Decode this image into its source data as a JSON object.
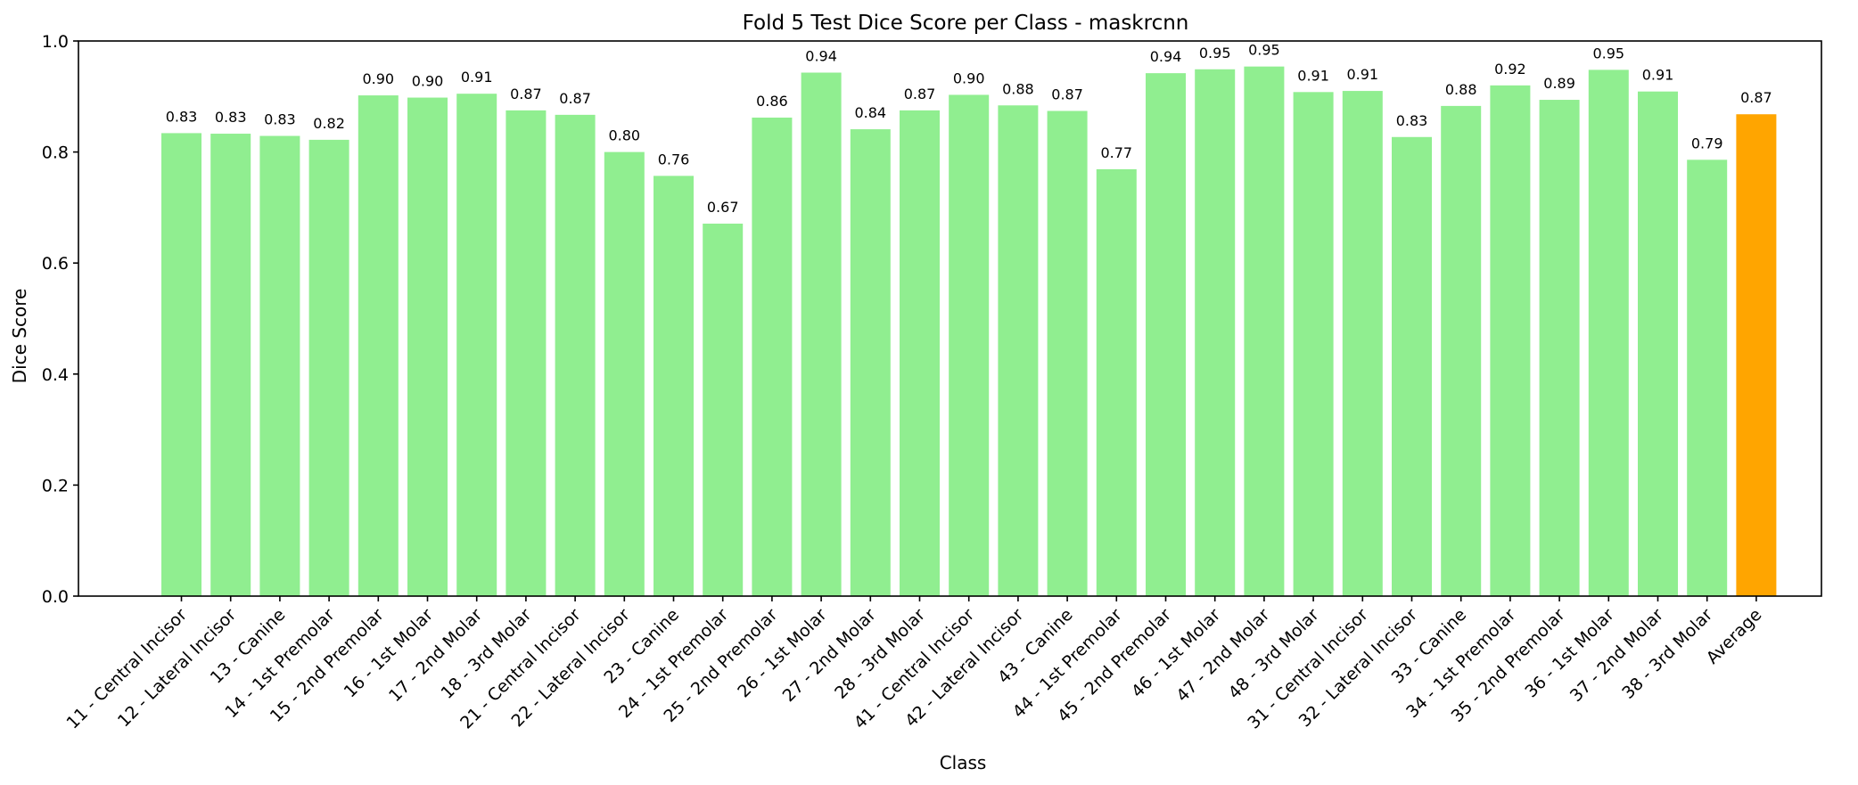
{
  "chart_data": {
    "type": "bar",
    "title": "Fold 5 Test Dice Score per Class - maskrcnn",
    "xlabel": "Class",
    "ylabel": "Dice Score",
    "ylim": [
      0,
      1.0
    ],
    "yticks": [
      "0.0",
      "0.2",
      "0.4",
      "0.6",
      "0.8",
      "1.0"
    ],
    "grid": false,
    "categories": [
      "11 - Central Incisor",
      "12 - Lateral Incisor",
      "13 - Canine",
      "14 - 1st Premolar",
      "15 - 2nd Premolar",
      "16 - 1st Molar",
      "17 - 2nd Molar",
      "18 - 3rd Molar",
      "21 - Central Incisor",
      "22 - Lateral Incisor",
      "23 - Canine",
      "24 - 1st Premolar",
      "25 - 2nd Premolar",
      "26 - 1st Molar",
      "27 - 2nd Molar",
      "28 - 3rd Molar",
      "41 - Central Incisor",
      "42 - Lateral Incisor",
      "43 - Canine",
      "44 - 1st Premolar",
      "45 - 2nd Premolar",
      "46 - 1st Molar",
      "47 - 2nd Molar",
      "48 - 3rd Molar",
      "31 - Central Incisor",
      "32 - Lateral Incisor",
      "33 - Canine",
      "34 - 1st Premolar",
      "35 - 2nd Premolar",
      "36 - 1st Molar",
      "37 - 2nd Molar",
      "38 - 3rd Molar",
      "Average"
    ],
    "values": [
      0.834,
      0.833,
      0.829,
      0.822,
      0.902,
      0.898,
      0.905,
      0.875,
      0.867,
      0.8,
      0.757,
      0.671,
      0.862,
      0.943,
      0.841,
      0.875,
      0.903,
      0.884,
      0.874,
      0.769,
      0.942,
      0.949,
      0.954,
      0.908,
      0.91,
      0.827,
      0.883,
      0.92,
      0.894,
      0.948,
      0.909,
      0.786,
      0.868
    ],
    "data_labels": [
      "0.83",
      "0.83",
      "0.83",
      "0.82",
      "0.90",
      "0.90",
      "0.91",
      "0.87",
      "0.87",
      "0.80",
      "0.76",
      "0.67",
      "0.86",
      "0.94",
      "0.84",
      "0.87",
      "0.90",
      "0.88",
      "0.87",
      "0.77",
      "0.94",
      "0.95",
      "0.95",
      "0.91",
      "0.91",
      "0.83",
      "0.88",
      "0.92",
      "0.89",
      "0.95",
      "0.91",
      "0.79",
      "0.87"
    ],
    "colors": {
      "bar": "#90ee90",
      "average_bar": "#ffa500"
    }
  }
}
